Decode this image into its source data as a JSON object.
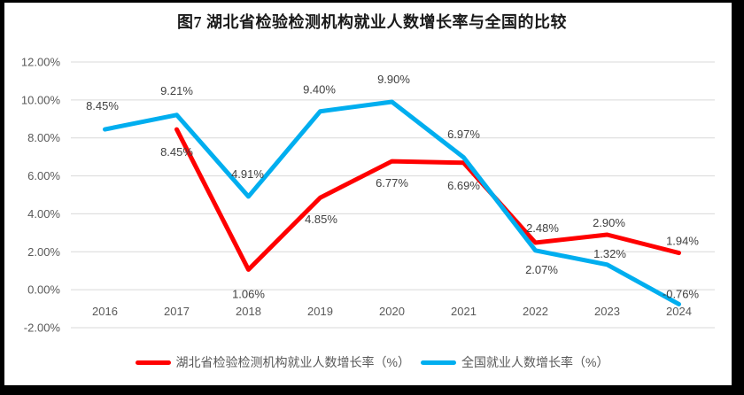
{
  "colors": {
    "frame": "#000000",
    "background": "#FFFFFF",
    "gridline": "#D9D9D9",
    "axis_text": "#595959",
    "data_label_text": "#404040",
    "title_text": "#1A1A1A",
    "hubei_red": "#FF0000",
    "national_blue": "#00AEEF"
  },
  "chart_data": {
    "type": "line",
    "title": "图7 湖北省检验检测机构就业人数增长率与全国的比较",
    "categories": [
      "2016",
      "2017",
      "2018",
      "2019",
      "2020",
      "2021",
      "2022",
      "2023",
      "2024"
    ],
    "y_axis": {
      "min": -2,
      "max": 12,
      "step": 2,
      "ticks": [
        {
          "value": 12,
          "label": "12.00%"
        },
        {
          "value": 10,
          "label": "10.00%"
        },
        {
          "value": 8,
          "label": "8.00%"
        },
        {
          "value": 6,
          "label": "6.00%"
        },
        {
          "value": 4,
          "label": "4.00%"
        },
        {
          "value": 2,
          "label": "2.00%"
        },
        {
          "value": 0,
          "label": "0.00%"
        },
        {
          "value": -2,
          "label": "-2.00%"
        }
      ]
    },
    "grid": "horizontal",
    "legend_position": "bottom",
    "series": [
      {
        "name": "湖北省检验检测机构就业人数增长率（%）",
        "color": "#FF0000",
        "values": [
          null,
          8.45,
          1.06,
          4.85,
          6.77,
          6.69,
          2.48,
          2.9,
          1.94
        ],
        "data_labels": [
          "",
          "8.45%",
          "1.06%",
          "4.85%",
          "6.77%",
          "6.69%",
          "2.48%",
          "2.90%",
          "1.94%"
        ],
        "label_offsets": [
          [
            0,
            0
          ],
          [
            0,
            26
          ],
          [
            0,
            28
          ],
          [
            1,
            25
          ],
          [
            0,
            25
          ],
          [
            0,
            26
          ],
          [
            8,
            -16
          ],
          [
            2,
            -13
          ],
          [
            4,
            -13
          ]
        ]
      },
      {
        "name": "全国就业人数增长率（%）",
        "color": "#00AEEF",
        "values": [
          8.45,
          9.21,
          4.91,
          9.4,
          9.9,
          6.97,
          2.07,
          1.32,
          -0.76
        ],
        "data_labels": [
          "8.45%",
          "9.21%",
          "4.91%",
          "9.40%",
          "9.90%",
          "6.97%",
          "2.07%",
          "1.32%",
          "-0.76%"
        ],
        "label_offsets": [
          [
            -3,
            -26
          ],
          [
            0,
            -27
          ],
          [
            -1,
            -25
          ],
          [
            -1,
            -24
          ],
          [
            2,
            -25
          ],
          [
            0,
            -26
          ],
          [
            7,
            22
          ],
          [
            3,
            -12
          ],
          [
            2,
            -11
          ]
        ]
      }
    ]
  }
}
